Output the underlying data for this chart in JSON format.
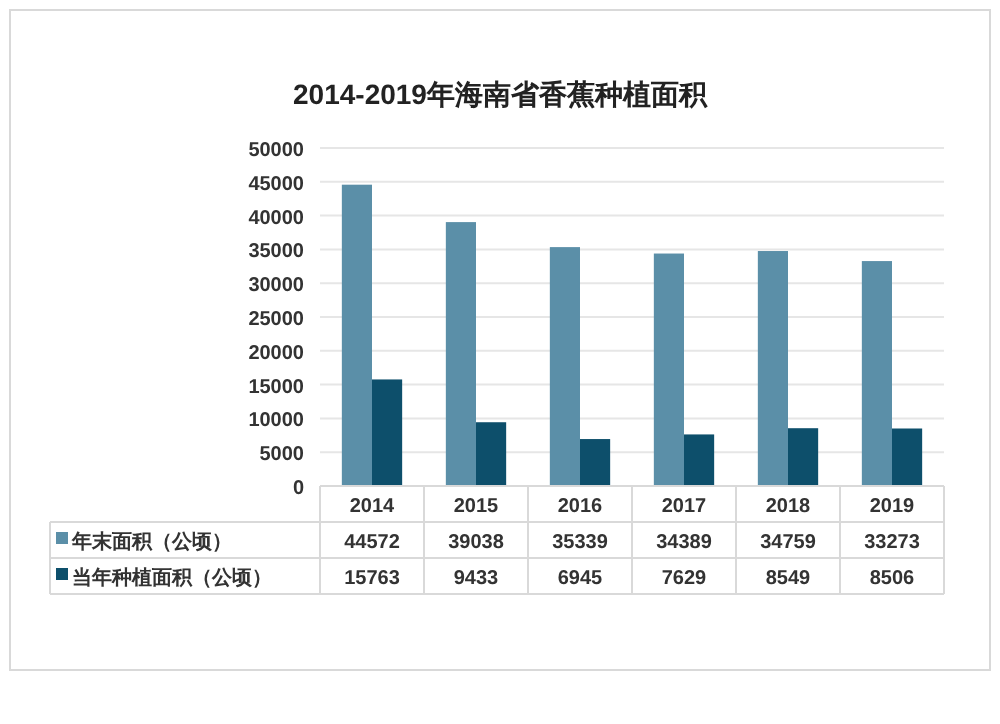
{
  "chart_data": {
    "type": "bar",
    "title": "2014-2019年海南省香蕉种植面积",
    "categories": [
      "2014",
      "2015",
      "2016",
      "2017",
      "2018",
      "2019"
    ],
    "series": [
      {
        "name": "年末面积（公顷）",
        "color": "#5b8fa8",
        "values": [
          44572,
          39038,
          35339,
          34389,
          34759,
          33273
        ]
      },
      {
        "name": "当年种植面积（公顷）",
        "color": "#0d4f6b",
        "values": [
          15763,
          9433,
          6945,
          7629,
          8549,
          8506
        ]
      }
    ],
    "ylim": [
      0,
      50000
    ],
    "yticks": [
      0,
      5000,
      10000,
      15000,
      20000,
      25000,
      30000,
      35000,
      40000,
      45000,
      50000
    ],
    "grid": "y",
    "data_labels": true,
    "legend": "bottom"
  }
}
